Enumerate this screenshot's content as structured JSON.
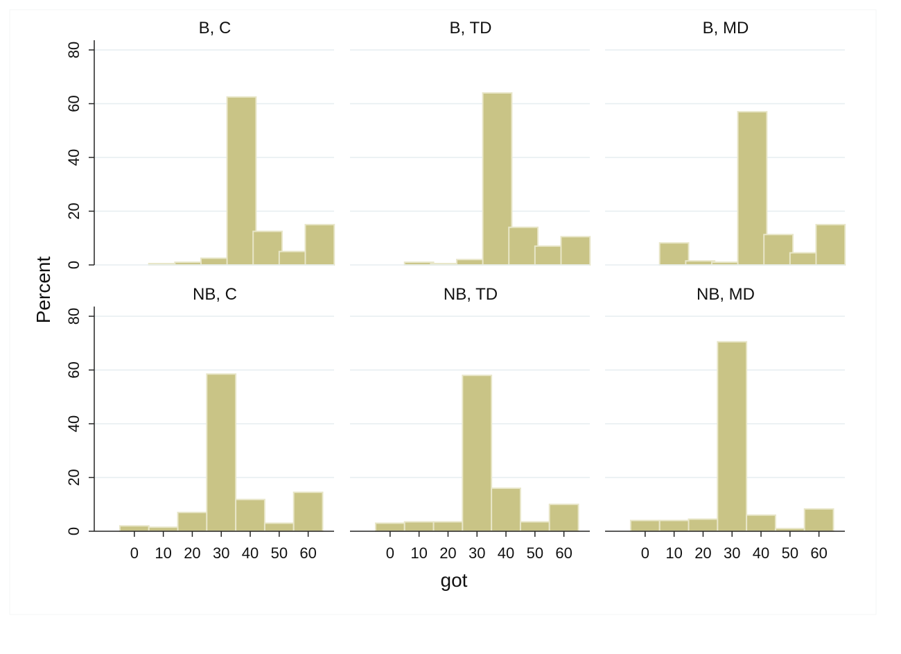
{
  "chart_data": {
    "type": "bar",
    "subtype": "histogram-small-multiples",
    "xlabel": "got",
    "ylabel": "Percent",
    "ylim": [
      0,
      80
    ],
    "yticks": [
      0,
      20,
      40,
      60,
      80
    ],
    "xticks": [
      0,
      10,
      20,
      30,
      40,
      50,
      60
    ],
    "bin_width": 10,
    "bar_color": "#c9c486",
    "bar_edge_color": "#e8e6c8",
    "grid": true,
    "grid_color": "#e6eef0",
    "panels": [
      {
        "title": "B, C",
        "bins": [
          {
            "x": 10,
            "y": 0.5
          },
          {
            "x": 19,
            "y": 1
          },
          {
            "x": 28,
            "y": 2.5
          },
          {
            "x": 37,
            "y": 62.5
          },
          {
            "x": 46,
            "y": 12.5
          },
          {
            "x": 55,
            "y": 5
          },
          {
            "x": 64,
            "y": 15
          }
        ]
      },
      {
        "title": "B, TD",
        "bins": [
          {
            "x": 10,
            "y": 1
          },
          {
            "x": 19,
            "y": 0.5
          },
          {
            "x": 28,
            "y": 2
          },
          {
            "x": 37,
            "y": 64
          },
          {
            "x": 46,
            "y": 14
          },
          {
            "x": 55,
            "y": 7
          },
          {
            "x": 64,
            "y": 10.5
          }
        ]
      },
      {
        "title": "B, MD",
        "bins": [
          {
            "x": 10,
            "y": 8.2
          },
          {
            "x": 19,
            "y": 1.5
          },
          {
            "x": 28,
            "y": 1
          },
          {
            "x": 37,
            "y": 57
          },
          {
            "x": 46,
            "y": 11.3
          },
          {
            "x": 55,
            "y": 4.5
          },
          {
            "x": 64,
            "y": 15
          }
        ]
      },
      {
        "title": "NB, C",
        "bins": [
          {
            "x": 0,
            "y": 2
          },
          {
            "x": 10,
            "y": 1.5
          },
          {
            "x": 20,
            "y": 7
          },
          {
            "x": 30,
            "y": 58.5
          },
          {
            "x": 40,
            "y": 11.8
          },
          {
            "x": 50,
            "y": 3
          },
          {
            "x": 60,
            "y": 14.5
          }
        ]
      },
      {
        "title": "NB, TD",
        "bins": [
          {
            "x": 0,
            "y": 3
          },
          {
            "x": 10,
            "y": 3.5
          },
          {
            "x": 20,
            "y": 3.5
          },
          {
            "x": 30,
            "y": 58
          },
          {
            "x": 40,
            "y": 16
          },
          {
            "x": 50,
            "y": 3.5
          },
          {
            "x": 60,
            "y": 10
          }
        ]
      },
      {
        "title": "NB, MD",
        "bins": [
          {
            "x": 0,
            "y": 4
          },
          {
            "x": 10,
            "y": 4
          },
          {
            "x": 20,
            "y": 4.5
          },
          {
            "x": 30,
            "y": 70.5
          },
          {
            "x": 40,
            "y": 6
          },
          {
            "x": 50,
            "y": 1
          },
          {
            "x": 60,
            "y": 8.3
          }
        ]
      }
    ]
  }
}
